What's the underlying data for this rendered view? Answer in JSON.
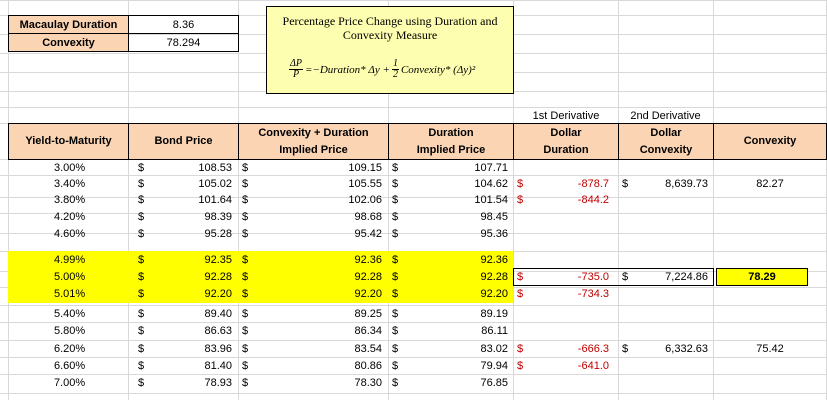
{
  "summary": {
    "macaulay_label": "Macaulay Duration",
    "macaulay_value": "8.36",
    "convexity_label": "Convexity",
    "convexity_value": "78.294"
  },
  "formula_box": {
    "title_line1": "Percentage Price Change using Duration and",
    "title_line2": "Convexity Measure",
    "dp": "ΔP",
    "p": "P",
    "rhs_1": "=−Duration* Δy +",
    "half_num": "1",
    "half_den": "2",
    "rhs_2": "Convexity* (Δy)²"
  },
  "derivative_labels": {
    "first": "1st Derivative",
    "second": "2nd Derivative"
  },
  "headers": {
    "ytm": "Yield-to-Maturity",
    "bond_price": "Bond Price",
    "conv_dur_1": "Convexity + Duration",
    "conv_dur_2": "Implied Price",
    "dur_1": "Duration",
    "dur_2": "Implied Price",
    "dollar_dur_1": "Dollar",
    "dollar_dur_2": "Duration",
    "dollar_conv_1": "Dollar",
    "dollar_conv_2": "Convexity",
    "convexity": "Convexity"
  },
  "currency_symbol": "$",
  "rows": [
    {
      "ytm": "3.00%",
      "bond": "108.53",
      "cd": "109.15",
      "dur": "107.71",
      "dd": "",
      "dc": "",
      "conv": "",
      "hl": false
    },
    {
      "ytm": "3.40%",
      "bond": "105.02",
      "cd": "105.55",
      "dur": "104.62",
      "dd": "-878.7",
      "dc": "8,639.73",
      "conv": "82.27",
      "hl": false
    },
    {
      "ytm": "3.80%",
      "bond": "101.64",
      "cd": "102.06",
      "dur": "101.54",
      "dd": "-844.2",
      "dc": "",
      "conv": "",
      "hl": false
    },
    {
      "ytm": "4.20%",
      "bond": "98.39",
      "cd": "98.68",
      "dur": "98.45",
      "dd": "",
      "dc": "",
      "conv": "",
      "hl": false
    },
    {
      "ytm": "4.60%",
      "bond": "95.28",
      "cd": "95.42",
      "dur": "95.36",
      "dd": "",
      "dc": "",
      "conv": "",
      "hl": false
    },
    {
      "ytm": "4.99%",
      "bond": "92.35",
      "cd": "92.36",
      "dur": "92.36",
      "dd": "",
      "dc": "",
      "conv": "",
      "hl": true
    },
    {
      "ytm": "5.00%",
      "bond": "92.28",
      "cd": "92.28",
      "dur": "92.28",
      "dd": "-735.0",
      "dc": "7,224.86",
      "conv": "78.29",
      "hl": true
    },
    {
      "ytm": "5.01%",
      "bond": "92.20",
      "cd": "92.20",
      "dur": "92.20",
      "dd": "-734.3",
      "dc": "",
      "conv": "",
      "hl": true
    },
    {
      "ytm": "5.40%",
      "bond": "89.40",
      "cd": "89.25",
      "dur": "89.19",
      "dd": "",
      "dc": "",
      "conv": "",
      "hl": false
    },
    {
      "ytm": "5.80%",
      "bond": "86.63",
      "cd": "86.34",
      "dur": "86.11",
      "dd": "",
      "dc": "",
      "conv": "",
      "hl": false
    },
    {
      "ytm": "6.20%",
      "bond": "83.96",
      "cd": "83.54",
      "dur": "83.02",
      "dd": "-666.3",
      "dc": "6,332.63",
      "conv": "75.42",
      "hl": false
    },
    {
      "ytm": "6.60%",
      "bond": "81.40",
      "cd": "80.86",
      "dur": "79.94",
      "dd": "-641.0",
      "dc": "",
      "conv": "",
      "hl": false
    },
    {
      "ytm": "7.00%",
      "bond": "78.93",
      "cd": "78.30",
      "dur": "76.85",
      "dd": "",
      "dc": "",
      "conv": "",
      "hl": false
    }
  ],
  "colors": {
    "header_fill": "#fbd4b4",
    "highlight_fill": "#ffff00",
    "formula_fill": "#fefeb0",
    "negative_text": "#c00000",
    "gridline": "#d9d9d9"
  }
}
